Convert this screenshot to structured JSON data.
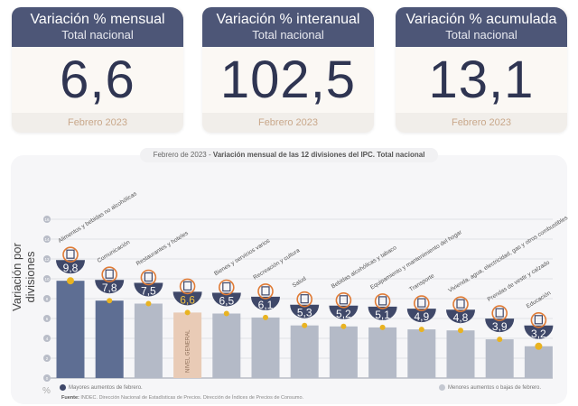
{
  "cards": [
    {
      "title": "Variación % mensual",
      "subtitle": "Total nacional",
      "value": "6,6",
      "period": "Febrero 2023"
    },
    {
      "title": "Variación % interanual",
      "subtitle": "Total nacional",
      "value": "102,5",
      "period": "Febrero 2023"
    },
    {
      "title": "Variación % acumulada",
      "subtitle": "Total nacional",
      "value": "13,1",
      "period": "Febrero 2023"
    }
  ],
  "panel": {
    "title_prefix": "Febrero de 2023 - ",
    "title_bold": "Variación mensual de las 12 divisiones del IPC. Total nacional",
    "legend_high": "Mayores aumentos de febrero.",
    "legend_low": "Menores aumentos o bajas de febrero.",
    "source_label": "Fuente:",
    "source_text": " INDEC. Dirección Nacional de Estadísticas de Precios. Dirección de Índices de Precios de Consumo.",
    "unit": "%"
  },
  "chart_data": {
    "type": "bar",
    "title": "Variación mensual de las 12 divisiones del IPC. Total nacional",
    "ylabel": "Variación por divisiones",
    "xlabel": "",
    "ylim": [
      0,
      16
    ],
    "yticks": [
      0,
      2,
      4,
      6,
      8,
      10,
      12,
      14,
      16
    ],
    "grid": true,
    "categories": [
      "Alimentos y bebidas no alcohólicas",
      "Comunicación",
      "Restaurantes y hoteles",
      "Nivel general",
      "Bienes y servicios varios",
      "Recreación y cultura",
      "Salud",
      "Bebidas alcohólicas y tabaco",
      "Equipamiento y mantenimiento del hogar",
      "Transporte",
      "Vivienda, agua, electricidad, gas y otros combustibles",
      "Prendas de vestir y calzado",
      "Educación"
    ],
    "values": [
      9.8,
      7.8,
      7.5,
      6.6,
      6.5,
      6.1,
      5.3,
      5.2,
      5.1,
      4.9,
      4.8,
      3.9,
      3.2
    ],
    "value_labels": [
      "9,8",
      "7,8",
      "7,5",
      "6,6",
      "6,5",
      "6,1",
      "5,3",
      "5,2",
      "5,1",
      "4,9",
      "4,8",
      "3,9",
      "3,2"
    ],
    "groups": [
      "high",
      "high",
      "low",
      "general",
      "low",
      "low",
      "low",
      "low",
      "low",
      "low",
      "low",
      "low",
      "low"
    ],
    "general_bar_label": "NIVEL GENERAL",
    "colors": {
      "high": "#5e6e93",
      "low": "#b4bac7",
      "general": "#e9cbb6",
      "badge": "#3f4869",
      "dot": "#e9b321",
      "icon": "#e07b35"
    }
  }
}
